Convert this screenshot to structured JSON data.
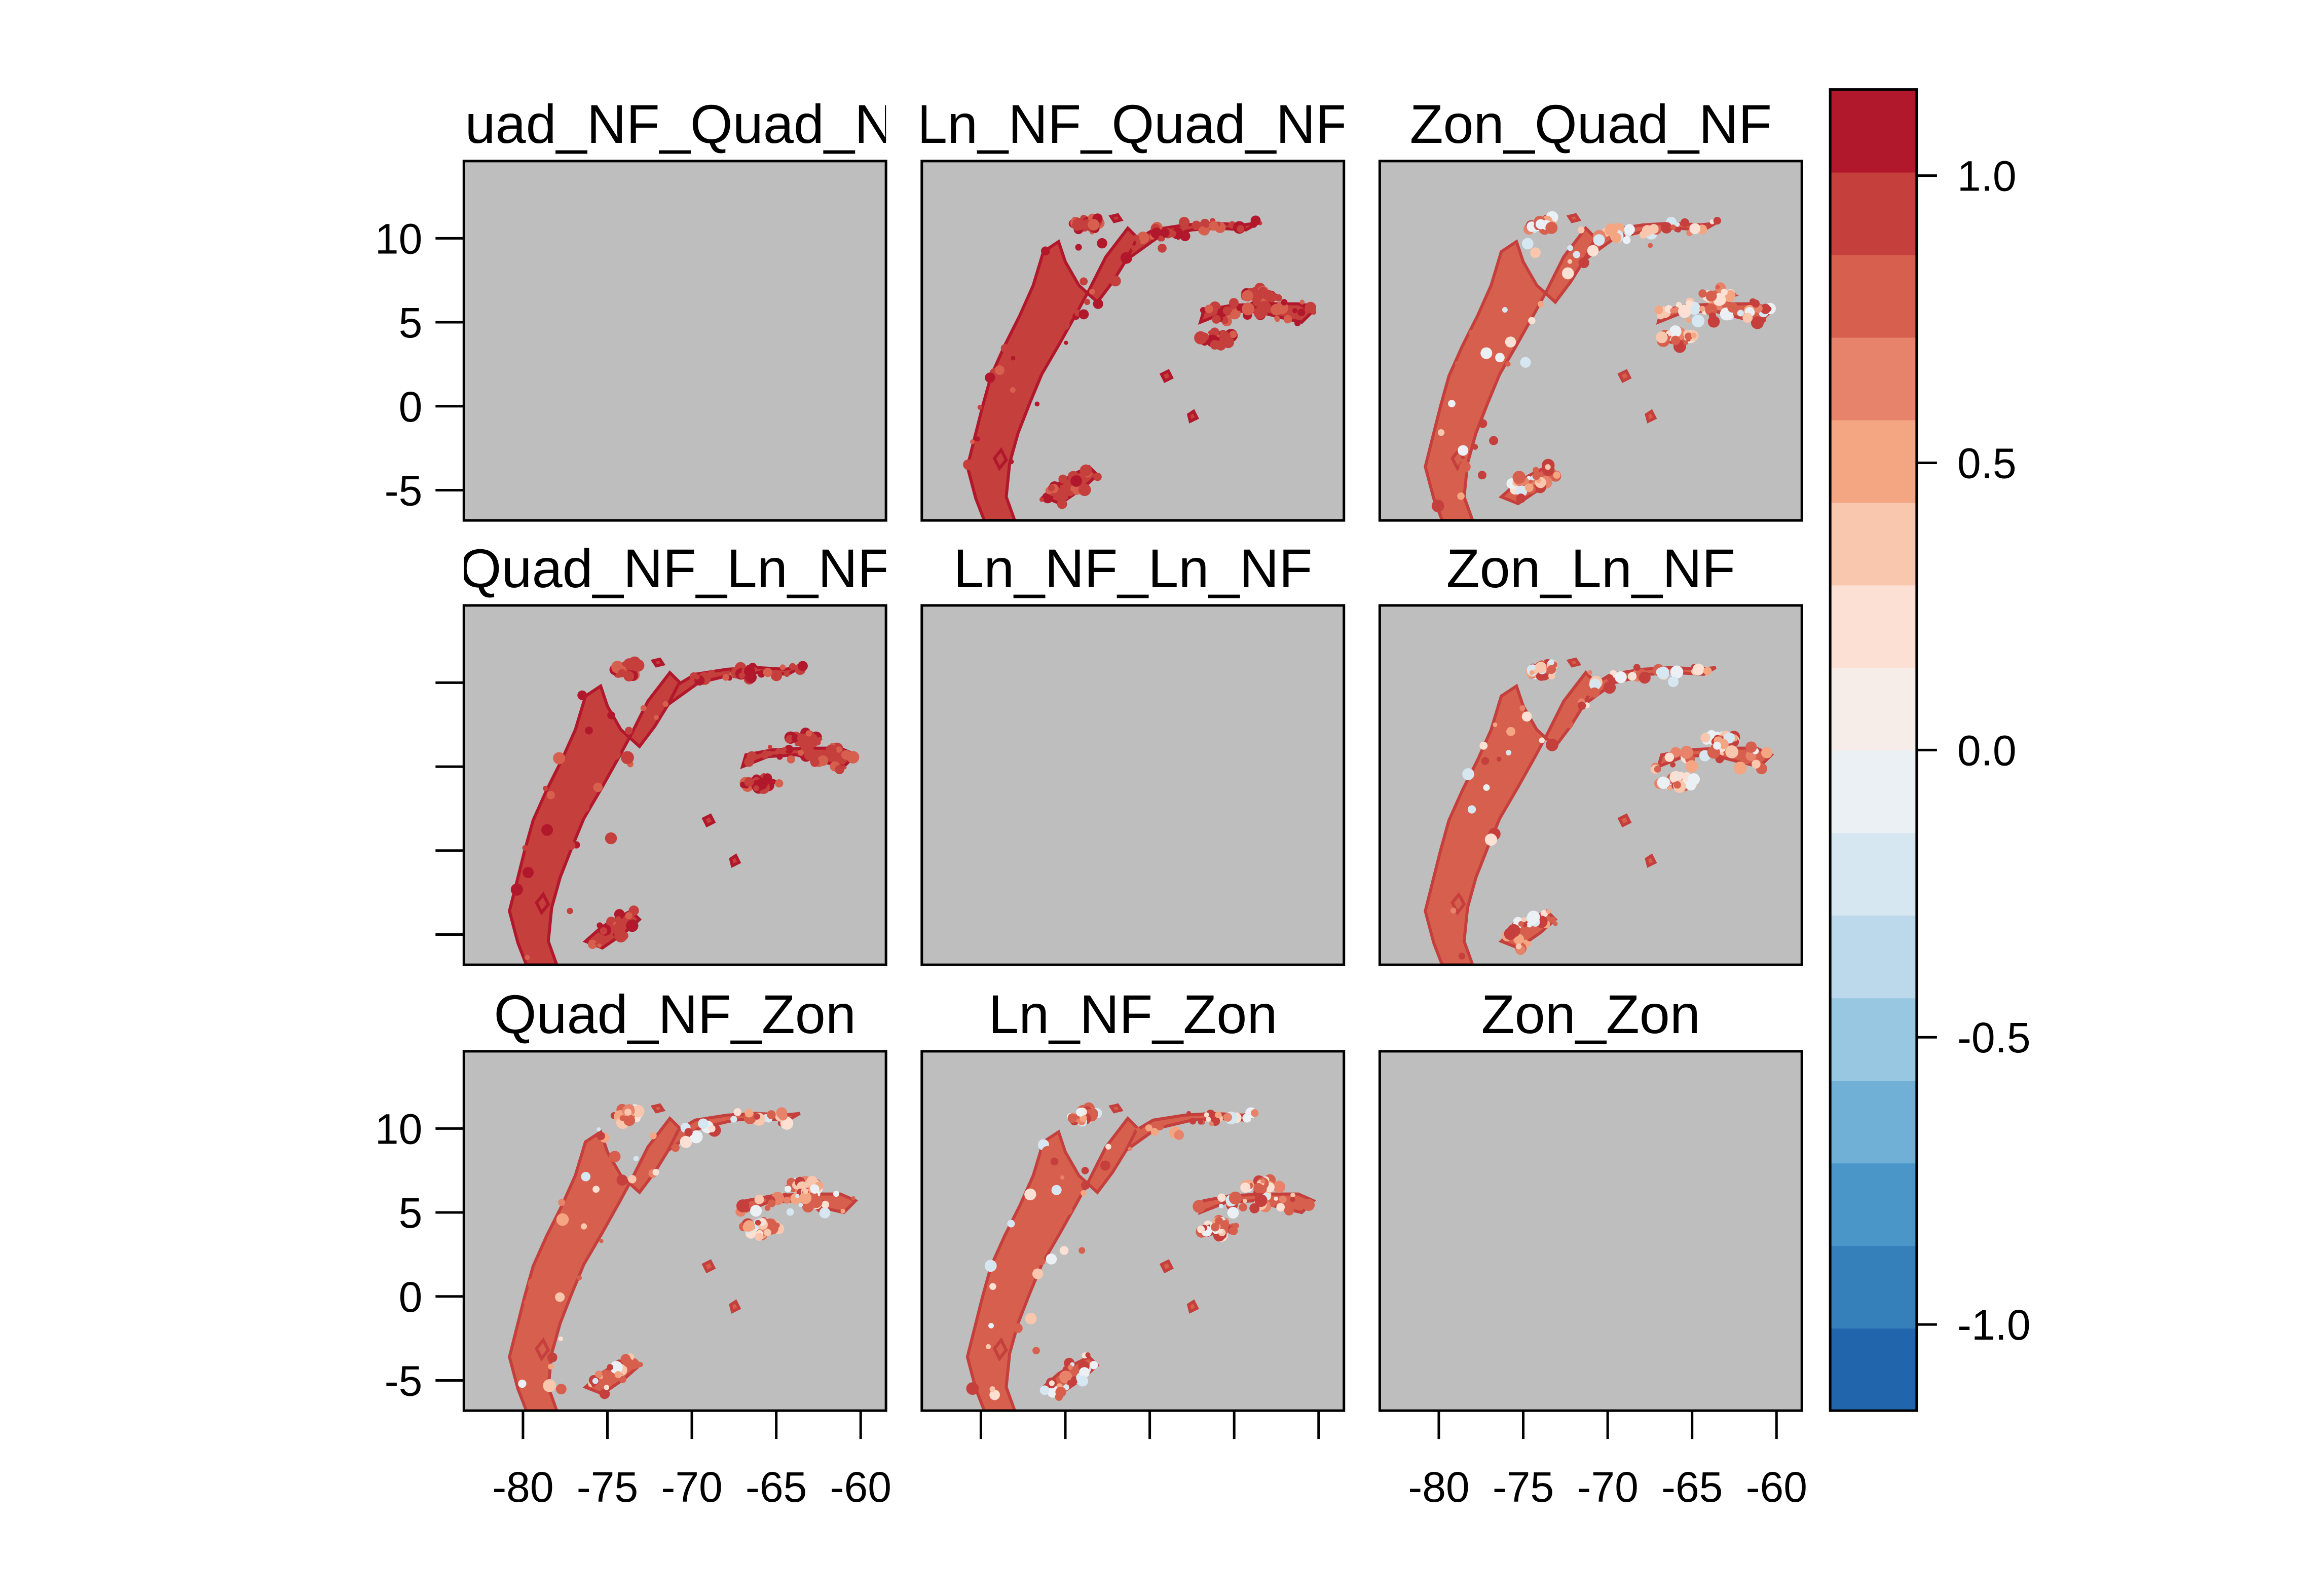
{
  "chart_data": {
    "type": "heatmap",
    "description_of_layout": "3x3 levelplot panel grid with shared diverging colorbar",
    "panel_background": "#bebebe",
    "panels": [
      {
        "title": "Quad_NF_Quad_NF",
        "data": "empty"
      },
      {
        "title": "Ln_NF_Quad_NF",
        "data": "map"
      },
      {
        "title": "Zon_Quad_NF",
        "data": "map"
      },
      {
        "title": "Quad_NF_Ln_NF",
        "data": "map"
      },
      {
        "title": "Ln_NF_Ln_NF",
        "data": "empty"
      },
      {
        "title": "Zon_Ln_NF",
        "data": "map"
      },
      {
        "title": "Quad_NF_Zon",
        "data": "map"
      },
      {
        "title": "Ln_NF_Zon",
        "data": "map"
      },
      {
        "title": "Zon_Zon",
        "data": "empty"
      }
    ],
    "x_ticks": [
      "-80",
      "-75",
      "-70",
      "-65",
      "-60"
    ],
    "y_ticks": [
      "10",
      "5",
      "0",
      "-5"
    ],
    "x_range": [
      -83.5,
      -58.5
    ],
    "y_range": [
      -6.8,
      14.6
    ],
    "colorbar": {
      "range": [
        -1.15,
        1.15
      ],
      "ticks": [
        "1.0",
        "0.5",
        "0.0",
        "-0.5",
        "-1.0"
      ],
      "colors": [
        "#2166ac",
        "#3580bb",
        "#4a96c8",
        "#70b0d6",
        "#98c8e1",
        "#bcd9eb",
        "#d6e7f1",
        "#eaf0f4",
        "#f7ede8",
        "#fbe0d3",
        "#f9c6ae",
        "#f4a683",
        "#e6836a",
        "#d6604d",
        "#c53f3d",
        "#b2182b"
      ]
    }
  }
}
